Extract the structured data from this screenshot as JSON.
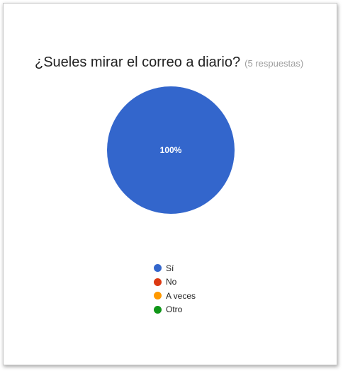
{
  "header": {
    "question": "¿Sueles mirar el correo a diario?",
    "responses": "(5 respuestas)"
  },
  "chart_data": {
    "type": "pie",
    "title": "¿Sueles mirar el correo a diario?",
    "categories": [
      "Sí",
      "No",
      "A veces",
      "Otro"
    ],
    "values": [
      5,
      0,
      0,
      0
    ],
    "slice_labels": [
      "100%",
      "",
      "",
      ""
    ],
    "colors": [
      "#3366cc",
      "#dc3912",
      "#ff9900",
      "#109618"
    ],
    "legend_position": "bottom"
  }
}
